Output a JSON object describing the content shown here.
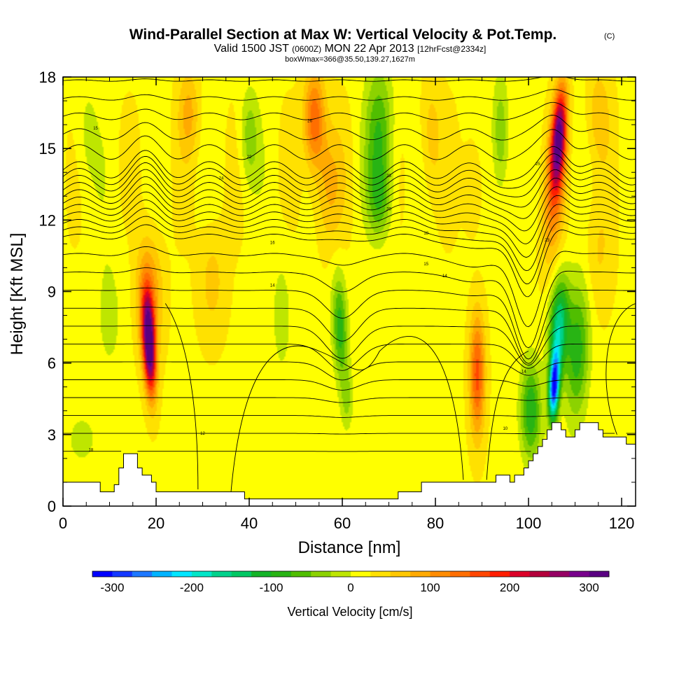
{
  "title": {
    "main": "Wind-Parallel Section at Max W: Vertical Velocity & Pot.Temp.",
    "copyright": "(C)",
    "valid_prefix": "Valid 1500 JST",
    "valid_utc": "(0600Z)",
    "valid_date": "MON 22 Apr 2013",
    "forecast": "[12hrFcst@2334z]",
    "box": "boxWmax=366@35.50,139.27,1627m"
  },
  "chart_data": {
    "type": "heatmap",
    "xlabel": "Distance [nm]",
    "ylabel": "Height [Kft MSL]",
    "xlim": [
      0,
      123
    ],
    "ylim": [
      0,
      18
    ],
    "x_ticks": [
      0,
      20,
      40,
      60,
      80,
      100,
      120
    ],
    "y_ticks": [
      0,
      3,
      6,
      9,
      12,
      15,
      18
    ],
    "x_tick_labels": [
      "0",
      "20",
      "40",
      "60",
      "80",
      "100",
      "120"
    ],
    "y_tick_labels": [
      "0",
      "3",
      "6",
      "9",
      "12",
      "15",
      "18"
    ],
    "colorbar": {
      "title": "Vertical Velocity [cm/s]",
      "range": [
        -325,
        325
      ],
      "ticks": [
        -300,
        -200,
        -100,
        0,
        100,
        200,
        300
      ],
      "tick_labels": [
        "-300",
        "-200",
        "-100",
        "0",
        "100",
        "200",
        "300"
      ],
      "colors": [
        "#0000ff",
        "#1438ff",
        "#1e78ff",
        "#00b4ff",
        "#00e6ff",
        "#00e6c8",
        "#00d28c",
        "#00c864",
        "#14b428",
        "#28b414",
        "#50be00",
        "#8cd200",
        "#bee600",
        "#ffff00",
        "#ffe100",
        "#ffc800",
        "#ffaa00",
        "#ff8c00",
        "#ff6e00",
        "#ff4600",
        "#ff1e00",
        "#dc0028",
        "#b4003c",
        "#960064",
        "#78008c",
        "#5a0082"
      ]
    },
    "background_w": 20,
    "w_features": [
      {
        "x": 18.5,
        "z": 6.8,
        "sx": 1.3,
        "sz": 2.0,
        "amp": 320,
        "tilt": -0.22
      },
      {
        "x": 18.5,
        "z": 8.8,
        "sx": 2.8,
        "sz": 2.5,
        "amp": 90,
        "tilt": 0
      },
      {
        "x": 106.5,
        "z": 15.5,
        "sx": 1.5,
        "sz": 2.0,
        "amp": 270,
        "tilt": 0.3
      },
      {
        "x": 105.5,
        "z": 13.0,
        "sx": 2.3,
        "sz": 2.8,
        "amp": 90,
        "tilt": 0.3
      },
      {
        "x": 105.5,
        "z": 5.0,
        "sx": 1.1,
        "sz": 1.4,
        "amp": -320,
        "tilt": 0.22
      },
      {
        "x": 106.5,
        "z": 7.5,
        "sx": 2.0,
        "sz": 2.0,
        "amp": -180,
        "tilt": 0.22
      },
      {
        "x": 100.5,
        "z": 4.0,
        "sx": 2.2,
        "sz": 2.0,
        "amp": -120,
        "tilt": 0
      },
      {
        "x": 110.5,
        "z": 6.5,
        "sx": 2.5,
        "sz": 2.8,
        "amp": -110,
        "tilt": 0.15
      },
      {
        "x": 54,
        "z": 16.2,
        "sx": 2.2,
        "sz": 2.0,
        "amp": 130,
        "tilt": 0
      },
      {
        "x": 57,
        "z": 13.5,
        "sx": 3.0,
        "sz": 2.5,
        "amp": 60,
        "tilt": 0
      },
      {
        "x": 68,
        "z": 15.5,
        "sx": 3.0,
        "sz": 3.0,
        "amp": -95,
        "tilt": 0
      },
      {
        "x": 68,
        "z": 12.8,
        "sx": 2.5,
        "sz": 1.5,
        "amp": -60,
        "tilt": 0
      },
      {
        "x": 59.5,
        "z": 7.5,
        "sx": 1.6,
        "sz": 2.2,
        "amp": -110,
        "tilt": -0.15
      },
      {
        "x": 61,
        "z": 4.5,
        "sx": 1.3,
        "sz": 1.3,
        "amp": -50,
        "tilt": 0
      },
      {
        "x": 89,
        "z": 5.5,
        "sx": 1.6,
        "sz": 2.5,
        "amp": 140,
        "tilt": 0
      },
      {
        "x": 88,
        "z": 13.5,
        "sx": 2.0,
        "sz": 2.0,
        "amp": 45,
        "tilt": 0
      },
      {
        "x": 40,
        "z": 15.5,
        "sx": 2.0,
        "sz": 2.0,
        "amp": -60,
        "tilt": 0
      },
      {
        "x": 94,
        "z": 15.5,
        "sx": 1.8,
        "sz": 2.5,
        "amp": -75,
        "tilt": 0
      },
      {
        "x": 27,
        "z": 16.5,
        "sx": 2.2,
        "sz": 1.8,
        "amp": 60,
        "tilt": 0
      },
      {
        "x": 79,
        "z": 15.5,
        "sx": 2.2,
        "sz": 2.5,
        "amp": 45,
        "tilt": 0
      },
      {
        "x": 115,
        "z": 16.5,
        "sx": 2.5,
        "sz": 2.0,
        "amp": 45,
        "tilt": 0
      },
      {
        "x": 5,
        "z": 15.5,
        "sx": 2.5,
        "sz": 2.5,
        "amp": -30,
        "tilt": 0
      },
      {
        "x": 10,
        "z": 8.0,
        "sx": 4.0,
        "sz": 3.5,
        "amp": -25,
        "tilt": 0
      },
      {
        "x": 32,
        "z": 9.5,
        "sx": 3.0,
        "sz": 2.5,
        "amp": 40,
        "tilt": 0
      },
      {
        "x": 47,
        "z": 8.0,
        "sx": 2.5,
        "sz": 3.0,
        "amp": -30,
        "tilt": 0
      },
      {
        "x": 4,
        "z": 2.8,
        "sx": 3.0,
        "sz": 1.0,
        "amp": -35,
        "tilt": 0
      },
      {
        "x": 115,
        "z": 10.5,
        "sx": 3.0,
        "sz": 2.5,
        "amp": 30,
        "tilt": 0
      }
    ],
    "terrain": [
      [
        0,
        1
      ],
      [
        8,
        1
      ],
      [
        8,
        0.6
      ],
      [
        11,
        0.6
      ],
      [
        11,
        0.9
      ],
      [
        12,
        0.9
      ],
      [
        12,
        1.6
      ],
      [
        13,
        1.6
      ],
      [
        13,
        2.2
      ],
      [
        16,
        2.2
      ],
      [
        16,
        1.6
      ],
      [
        17,
        1.6
      ],
      [
        17,
        1.3
      ],
      [
        19,
        1.3
      ],
      [
        19,
        1.0
      ],
      [
        20,
        1.0
      ],
      [
        20,
        0.6
      ],
      [
        39,
        0.6
      ],
      [
        39,
        0.3
      ],
      [
        72,
        0.3
      ],
      [
        72,
        0.6
      ],
      [
        77,
        0.6
      ],
      [
        77,
        1.0
      ],
      [
        90,
        1.0
      ],
      [
        90,
        1.0
      ],
      [
        93,
        1.0
      ],
      [
        93,
        1.3
      ],
      [
        96,
        1.3
      ],
      [
        96,
        1.0
      ],
      [
        97,
        1.0
      ],
      [
        97,
        1.3
      ],
      [
        99,
        1.3
      ],
      [
        99,
        1.6
      ],
      [
        100,
        1.6
      ],
      [
        100,
        1.9
      ],
      [
        101,
        1.9
      ],
      [
        101,
        2.2
      ],
      [
        102,
        2.2
      ],
      [
        102,
        2.5
      ],
      [
        103,
        2.5
      ],
      [
        103,
        2.8
      ],
      [
        104,
        2.8
      ],
      [
        104,
        3.2
      ],
      [
        105,
        3.2
      ],
      [
        105,
        3.5
      ],
      [
        107,
        3.5
      ],
      [
        107,
        3.2
      ],
      [
        108,
        3.2
      ],
      [
        108,
        2.9
      ],
      [
        110,
        2.9
      ],
      [
        110,
        3.2
      ],
      [
        111,
        3.2
      ],
      [
        111,
        3.5
      ],
      [
        115,
        3.5
      ],
      [
        115,
        3.2
      ],
      [
        116,
        3.2
      ],
      [
        116,
        2.9
      ],
      [
        121,
        2.9
      ],
      [
        121,
        2.6
      ],
      [
        123,
        2.6
      ]
    ],
    "contour_labels": [
      {
        "text": "18",
        "x": 6,
        "z": 2.3
      },
      {
        "text": "15",
        "x": 7,
        "z": 15.8
      },
      {
        "text": "24",
        "x": 34,
        "z": 13.7
      },
      {
        "text": "12",
        "x": 30,
        "z": 3.0
      },
      {
        "text": "14",
        "x": 45,
        "z": 9.2
      },
      {
        "text": "16",
        "x": 45,
        "z": 11.0
      },
      {
        "text": "22",
        "x": 40,
        "z": 14.6
      },
      {
        "text": "26",
        "x": 53,
        "z": 16.1
      },
      {
        "text": "20",
        "x": 70,
        "z": 12.4
      },
      {
        "text": "23",
        "x": 70,
        "z": 13.8
      },
      {
        "text": "18",
        "x": 78,
        "z": 11.4
      },
      {
        "text": "15",
        "x": 78,
        "z": 10.1
      },
      {
        "text": "14",
        "x": 82,
        "z": 9.6
      },
      {
        "text": "10",
        "x": 95,
        "z": 3.2
      },
      {
        "text": "25",
        "x": 102,
        "z": 14.3
      },
      {
        "text": "23",
        "x": 104,
        "z": 11.1
      },
      {
        "text": "14",
        "x": 99,
        "z": 5.6
      }
    ]
  }
}
